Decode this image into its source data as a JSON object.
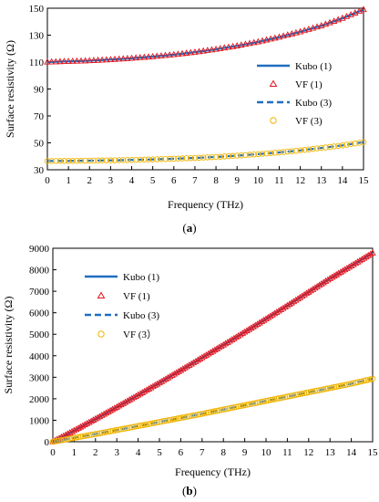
{
  "chart_data": [
    {
      "type": "scatter",
      "caption_open": "(",
      "caption_letter": "a",
      "caption_close": ")",
      "xlabel": "Frequency (THz)",
      "ylabel": "Surface resistivity (Ω)",
      "xlim": [
        0,
        15
      ],
      "ylim": [
        30,
        150
      ],
      "xticks": [
        "0",
        "1",
        "2",
        "3",
        "4",
        "5",
        "6",
        "7",
        "8",
        "9",
        "10",
        "11",
        "12",
        "13",
        "14",
        "15"
      ],
      "yticks": [
        "30",
        "50",
        "70",
        "90",
        "110",
        "130",
        "150"
      ],
      "grid": false,
      "legend_position": "right",
      "series": [
        {
          "name": "Kubo (1)",
          "style": "solid-line",
          "color": "#1f6fbf",
          "x": [
            0,
            1,
            2,
            3,
            4,
            5,
            6,
            7,
            8,
            9,
            10,
            11,
            12,
            13,
            14,
            15
          ],
          "y": [
            110,
            110.5,
            111,
            111.8,
            112.8,
            114,
            115.5,
            117.3,
            119.5,
            122,
            125,
            128.5,
            132.5,
            137,
            142.5,
            149
          ]
        },
        {
          "name": "VF (1)",
          "style": "triangle-marker",
          "color": "#e0141e",
          "x": [
            0,
            1,
            2,
            3,
            4,
            5,
            6,
            7,
            8,
            9,
            10,
            11,
            12,
            13,
            14,
            15
          ],
          "y": [
            110,
            110.5,
            111,
            111.8,
            112.8,
            114,
            115.5,
            117.3,
            119.5,
            122,
            125,
            128.5,
            132.5,
            137,
            142.5,
            149
          ]
        },
        {
          "name": "Kubo (3)",
          "style": "dashed-line",
          "color": "#1f6fbf",
          "x": [
            0,
            1,
            2,
            3,
            4,
            5,
            6,
            7,
            8,
            9,
            10,
            11,
            12,
            13,
            14,
            15
          ],
          "y": [
            36.5,
            36.6,
            36.8,
            37,
            37.3,
            37.7,
            38.2,
            38.8,
            39.5,
            40.5,
            41.6,
            42.9,
            44.4,
            46.2,
            48.1,
            50.5
          ]
        },
        {
          "name": "VF (3)",
          "style": "circle-marker",
          "color": "#f0b400",
          "x": [
            0,
            1,
            2,
            3,
            4,
            5,
            6,
            7,
            8,
            9,
            10,
            11,
            12,
            13,
            14,
            15
          ],
          "y": [
            36.5,
            36.6,
            36.8,
            37,
            37.3,
            37.7,
            38.2,
            38.8,
            39.5,
            40.5,
            41.6,
            42.9,
            44.4,
            46.2,
            48.1,
            50.5
          ]
        }
      ]
    },
    {
      "type": "scatter",
      "caption_open": "(",
      "caption_letter": "b",
      "caption_close": ")",
      "xlabel": "Frequency (THz)",
      "ylabel": "Surface resistivity (Ω)",
      "xlim": [
        0,
        15
      ],
      "ylim": [
        0,
        9000
      ],
      "xticks": [
        "0",
        "1",
        "2",
        "3",
        "4",
        "5",
        "6",
        "7",
        "8",
        "9",
        "10",
        "11",
        "12",
        "13",
        "14",
        "15"
      ],
      "yticks": [
        "0",
        "1000",
        "2000",
        "3000",
        "4000",
        "5000",
        "6000",
        "7000",
        "8000",
        "9000"
      ],
      "grid": false,
      "legend_position": "top-left",
      "series": [
        {
          "name": "Kubo (1)",
          "style": "solid-line",
          "color": "#1f6fbf",
          "x": [
            0,
            1,
            2,
            3,
            4,
            5,
            6,
            7,
            8,
            9,
            10,
            11,
            12,
            13,
            14,
            15
          ],
          "y": [
            0,
            520,
            1060,
            1610,
            2170,
            2740,
            3320,
            3910,
            4500,
            5100,
            5710,
            6330,
            6960,
            7590,
            8180,
            8780
          ]
        },
        {
          "name": "VF (1)",
          "style": "triangle-marker",
          "color": "#e0141e",
          "x": [
            0,
            1,
            2,
            3,
            4,
            5,
            6,
            7,
            8,
            9,
            10,
            11,
            12,
            13,
            14,
            15
          ],
          "y": [
            0,
            520,
            1060,
            1610,
            2170,
            2740,
            3320,
            3910,
            4500,
            5100,
            5710,
            6330,
            6960,
            7590,
            8180,
            8780
          ]
        },
        {
          "name": "Kubo (3)",
          "style": "dashed-line",
          "color": "#1f6fbf",
          "x": [
            0,
            1,
            2,
            3,
            4,
            5,
            6,
            7,
            8,
            9,
            10,
            11,
            12,
            13,
            14,
            15
          ],
          "y": [
            0,
            180,
            360,
            545,
            730,
            920,
            1110,
            1300,
            1500,
            1700,
            1900,
            2100,
            2300,
            2500,
            2700,
            2930
          ]
        },
        {
          "name": "VF (3）",
          "style": "circle-marker",
          "color": "#f0b400",
          "x": [
            0,
            1,
            2,
            3,
            4,
            5,
            6,
            7,
            8,
            9,
            10,
            11,
            12,
            13,
            14,
            15
          ],
          "y": [
            0,
            180,
            360,
            545,
            730,
            920,
            1110,
            1300,
            1500,
            1700,
            1900,
            2100,
            2300,
            2500,
            2700,
            2930
          ]
        }
      ]
    }
  ]
}
